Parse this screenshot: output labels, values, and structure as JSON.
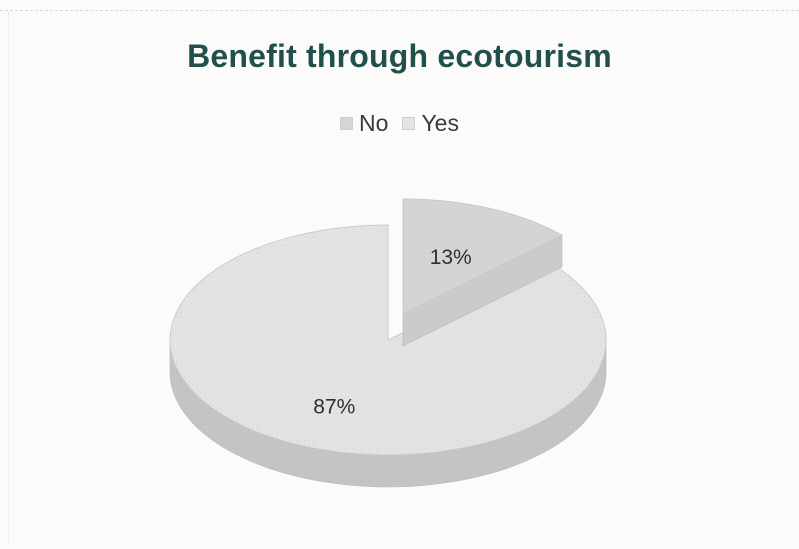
{
  "chart_data": {
    "type": "pie",
    "title": "Benefit through ecotourism",
    "categories": [
      "No",
      "Yes"
    ],
    "values": [
      13,
      87
    ],
    "data_labels": [
      "13%",
      "87%"
    ],
    "legend_position": "top",
    "exploded_slice": "No",
    "style": "3d",
    "colors": [
      "#d4d6d6",
      "#e3e5e5"
    ]
  }
}
